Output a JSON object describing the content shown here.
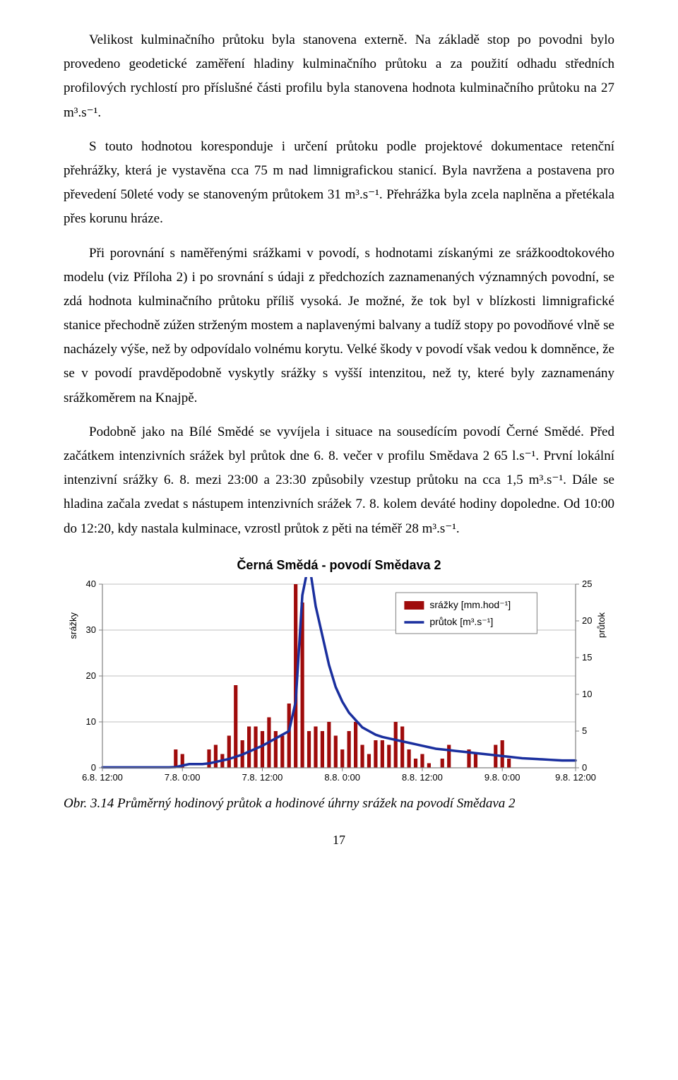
{
  "paragraphs": {
    "p1": "Velikost kulminačního průtoku byla stanovena externě. Na základě stop po povodni bylo provedeno geodetické zaměření hladiny kulminačního průtoku a za použití odhadu středních profilových rychlostí pro příslušné části profilu byla stanovena hodnota kulminačního průtoku na 27 m³.s⁻¹.",
    "p2": "S touto hodnotou koresponduje i určení průtoku podle projektové dokumentace retenční přehrážky, která je vystavěna cca 75 m nad limnigrafickou stanicí. Byla navržena a postavena pro převedení 50leté vody se stanoveným průtokem 31 m³.s⁻¹. Přehrážka byla zcela naplněna a přetékala přes korunu hráze.",
    "p3": "Při porovnání s naměřenými srážkami v povodí, s hodnotami získanými ze srážkoodtokového modelu (viz Příloha 2) i po srovnání s údaji z předchozích zaznamenaných významných povodní, se zdá hodnota kulminačního průtoku příliš vysoká. Je možné, že tok byl v blízkosti limnigrafické stanice přechodně zúžen strženým mostem a naplavenými balvany a tudíž stopy po povodňové vlně se nacházely výše, než by odpovídalo volnému korytu. Velké škody v povodí však vedou k domněnce, že se v povodí pravděpodobně vyskytly srážky s vyšší intenzitou, než ty, které byly zaznamenány srážkoměrem na Knajpě.",
    "p4": "Podobně jako na Bílé Smědé se vyvíjela i situace na sousedícím povodí Černé Smědé. Před začátkem intenzivních srážek byl průtok dne 6. 8. večer v profilu Smědava 2 65 l.s⁻¹. První lokální intenzivní srážky 6. 8. mezi 23:00 a 23:30 způsobily vzestup průtoku na cca 1,5 m³.s⁻¹. Dále se hladina začala zvedat s nástupem intenzivních srážek 7. 8. kolem deváté hodiny dopoledne. Od 10:00 do 12:20, kdy nastala kulminace, vzrostl průtok z pěti na téměř 28 m³.s⁻¹."
  },
  "caption": "Obr. 3.14 Průměrný hodinový průtok a hodinové úhrny srážek na povodí Smědava 2",
  "pagenum": "17",
  "chart": {
    "type": "bar+line",
    "title": "Černá Smědá - povodí Smědava 2",
    "left_axis_label": "srážky",
    "right_axis_label": "průtok",
    "left_ylim": [
      0,
      40
    ],
    "left_ticks": [
      0,
      10,
      20,
      30,
      40
    ],
    "right_ylim": [
      0,
      25
    ],
    "right_ticks": [
      0,
      5,
      10,
      15,
      20,
      25
    ],
    "x_ticks": [
      "6.8. 12:00",
      "7.8. 0:00",
      "7.8. 12:00",
      "8.8. 0:00",
      "8.8. 12:00",
      "9.8. 0:00",
      "9.8. 12:00"
    ],
    "n_hours": 72,
    "legend": {
      "bar_label": "srážky [mm.hod⁻¹]",
      "line_label": "průtok [m³.s⁻¹]"
    },
    "colors": {
      "bar": "#9f0b0b",
      "line": "#1a2f9e",
      "grid": "#bfbfbf",
      "axis": "#808080",
      "background": "#ffffff",
      "text": "#000000"
    },
    "line_width": 3.5,
    "bar_width_ratio": 0.55,
    "title_fontsize": 18,
    "tick_fontsize": 13,
    "label_fontsize": 13,
    "precip": [
      0,
      0,
      0,
      0,
      0,
      0,
      0,
      0,
      0,
      0,
      0,
      4,
      3,
      0,
      0,
      0,
      4,
      5,
      3,
      7,
      18,
      6,
      9,
      9,
      8,
      11,
      8,
      7,
      14,
      40,
      36,
      8,
      9,
      8,
      10,
      7,
      4,
      8,
      10,
      5,
      3,
      6,
      6,
      5,
      10,
      9,
      4,
      2,
      3,
      1,
      0,
      2,
      5,
      0,
      0,
      4,
      3,
      0,
      0,
      5,
      6,
      2,
      0,
      0,
      0,
      0,
      0,
      0,
      0,
      0,
      0,
      0
    ],
    "flow": [
      0.06,
      0.06,
      0.06,
      0.06,
      0.06,
      0.06,
      0.06,
      0.06,
      0.06,
      0.06,
      0.06,
      0.1,
      0.3,
      0.5,
      0.5,
      0.5,
      0.6,
      0.8,
      1.0,
      1.2,
      1.5,
      1.8,
      2.2,
      2.6,
      3.0,
      3.5,
      4.0,
      4.5,
      5.0,
      9.0,
      23.5,
      28.0,
      22.0,
      18.0,
      14.0,
      11.0,
      9.0,
      7.5,
      6.5,
      5.5,
      5.0,
      4.5,
      4.2,
      4.0,
      3.8,
      3.6,
      3.4,
      3.2,
      3.0,
      2.8,
      2.6,
      2.5,
      2.4,
      2.3,
      2.2,
      2.1,
      2.0,
      1.9,
      1.8,
      1.7,
      1.6,
      1.5,
      1.4,
      1.3,
      1.25,
      1.2,
      1.15,
      1.1,
      1.05,
      1.0,
      1.0,
      1.0
    ]
  }
}
